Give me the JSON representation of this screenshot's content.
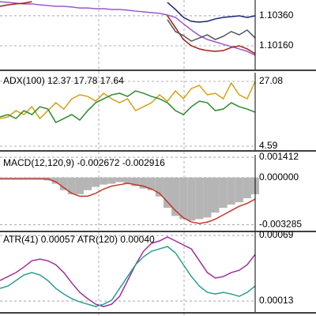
{
  "chart_data": [
    {
      "type": "line",
      "ylim": [
        1.10002,
        1.10465
      ],
      "yticks": [
        {
          "value": 1.1036,
          "label": "1.10360"
        },
        {
          "value": 1.1016,
          "label": "1.10160"
        }
      ],
      "series": [
        {
          "color": "#9b59c9",
          "values": [
            1.10454,
            1.10449,
            1.10444,
            1.10439,
            1.10439,
            1.10433,
            1.10428,
            1.10423,
            1.10423,
            1.10418,
            1.10412,
            1.10412,
            1.10407,
            1.10407,
            1.10402,
            1.10402,
            1.10397,
            1.10391,
            1.10386,
            1.10381,
            1.10376,
            1.10365,
            1.10349,
            1.10307,
            1.10265,
            1.10228,
            1.10202,
            1.10186,
            1.1017,
            1.10155,
            1.10139,
            1.10123,
            1.10097
          ]
        },
        {
          "color": "#a01c1c",
          "values": [
            1.10423,
            1.10433,
            1.10439,
            1.10444,
            1.10454,
            null,
            null,
            null,
            null,
            null,
            null,
            null,
            null,
            null,
            null,
            null,
            null,
            null,
            null,
            null,
            null,
            1.1036,
            1.10281,
            1.10202,
            1.1016,
            1.10139,
            1.10128,
            1.10123,
            1.10128,
            1.10149,
            1.1016,
            1.10139,
            1.10107
          ]
        },
        {
          "color": "#1a237e",
          "values": [
            null,
            null,
            null,
            null,
            null,
            null,
            null,
            null,
            null,
            null,
            null,
            null,
            null,
            null,
            null,
            null,
            null,
            null,
            null,
            null,
            null,
            1.10449,
            1.10402,
            1.10349,
            1.10323,
            1.10318,
            1.10323,
            1.10339,
            1.10349,
            1.10354,
            1.1036,
            1.10349,
            1.1036
          ]
        },
        {
          "color": "#555555",
          "values": [
            null,
            null,
            null,
            null,
            null,
            null,
            null,
            null,
            null,
            null,
            null,
            null,
            null,
            null,
            null,
            null,
            null,
            null,
            null,
            null,
            null,
            1.10334,
            1.10255,
            1.10228,
            1.10191,
            1.10212,
            1.10233,
            1.10202,
            1.10223,
            1.10255,
            1.10233,
            1.10265,
            1.10212
          ]
        }
      ]
    },
    {
      "type": "line",
      "title": "ADX(100) 12.37 17.78 17.64",
      "ylim": [
        3.22,
        30.09
      ],
      "yticks": [
        27.08,
        4.59
      ],
      "series": [
        {
          "color": "#d4a017",
          "values": [
            14.18,
            14.73,
            16.92,
            15.55,
            18.29,
            14.18,
            16.92,
            19.66,
            17.47,
            21.03,
            22.4,
            21.85,
            20.21,
            22.95,
            21.03,
            19.66,
            21.03,
            16.92,
            18.29,
            19.66,
            22.4,
            20.21,
            23.77,
            21.03,
            24.59,
            25.69,
            22.4,
            22.95,
            21.03,
            26.51,
            22.4,
            21.03,
            27.08
          ]
        },
        {
          "color": "#2e8b2e",
          "values": [
            14.73,
            15.55,
            14.18,
            16.92,
            15.55,
            18.29,
            17.47,
            12.81,
            14.18,
            15.55,
            13.63,
            16.92,
            19.66,
            21.03,
            22.4,
            22.95,
            21.85,
            23.77,
            22.95,
            21.85,
            21.03,
            19.66,
            16.92,
            15.55,
            18.29,
            20.21,
            19.66,
            16.92,
            17.47,
            19.66,
            18.29,
            17.47,
            16.37
          ]
        }
      ]
    },
    {
      "type": "line",
      "title": "MACD(12,120,9) -0.002672 -0.002916",
      "ylim": [
        -0.0037,
        0.00158
      ],
      "yticks": [
        0.001412,
        {
          "value": 0,
          "label": "0.000000"
        },
        -0.003285
      ],
      "series": [
        {
          "color": "#b5b5b5",
          "style": "bar",
          "values": [
            -0.0001,
            -0.0001,
            -0.0001,
            -0.0001,
            -0.0001,
            -0.0001,
            -0.0002,
            -0.00043,
            -0.00088,
            -0.00116,
            -0.00116,
            -0.00088,
            -0.00065,
            -0.00049,
            -0.00043,
            -0.00032,
            -0.00043,
            -0.0006,
            -0.00077,
            -0.00088,
            -0.00132,
            -0.00211,
            -0.00267,
            -0.00289,
            -0.003,
            -0.00289,
            -0.00278,
            -0.00244,
            -0.00211,
            -0.00188,
            -0.00172,
            -0.00144,
            -0.00116
          ]
        },
        {
          "color": "#c0392b",
          "values": [
            -0.0001,
            -0.0001,
            -0.0001,
            -0.0001,
            -0.0001,
            -0.0001,
            -0.0001,
            -0.0003,
            -0.0007,
            -0.0011,
            -0.0013,
            -0.0013,
            -0.0011,
            -0.0008,
            -0.0006,
            -0.0005,
            -0.0004,
            -0.0005,
            -0.0006,
            -0.0008,
            -0.0011,
            -0.0017,
            -0.0023,
            -0.0028,
            -0.0031,
            -0.0032,
            -0.0031,
            -0.0029,
            -0.0026,
            -0.0023,
            -0.002,
            -0.0018,
            -0.0015
          ]
        }
      ]
    },
    {
      "type": "line",
      "title": "ATR(41) 0.00057 ATR(120) 0.00040",
      "ylim": [
        3.6e-05,
        0.000724
      ],
      "yticks": [
        0.00069,
        0.00013
      ],
      "series": [
        {
          "color": "#a0309a",
          "values": [
            0.000305,
            0.000339,
            0.000373,
            0.00042,
            0.000474,
            0.000488,
            0.000474,
            0.00044,
            0.000373,
            0.000285,
            0.000204,
            0.00015,
            0.000103,
            8.3e-05,
            0.000103,
            0.00017,
            0.000305,
            0.00044,
            0.000555,
            0.000623,
            0.000643,
            0.000677,
            0.000643,
            0.000609,
            0.000575,
            0.000474,
            0.000373,
            0.000326,
            0.000339,
            0.000373,
            0.000393,
            0.00044,
            0.000528
          ]
        },
        {
          "color": "#2a9d8f",
          "values": [
            0.000238,
            0.000258,
            0.000305,
            0.000353,
            0.000373,
            0.000353,
            0.000305,
            0.000238,
            0.00019,
            0.00015,
            0.000123,
            0.000103,
            8.3e-05,
            0.000103,
            0.000137,
            0.000238,
            0.000339,
            0.00044,
            0.000508,
            0.000555,
            0.000575,
            0.000596,
            0.000542,
            0.00044,
            0.000339,
            0.000258,
            0.000204,
            0.00019,
            0.000204,
            0.00019,
            0.00017,
            0.000204,
            0.000258
          ]
        }
      ]
    }
  ]
}
